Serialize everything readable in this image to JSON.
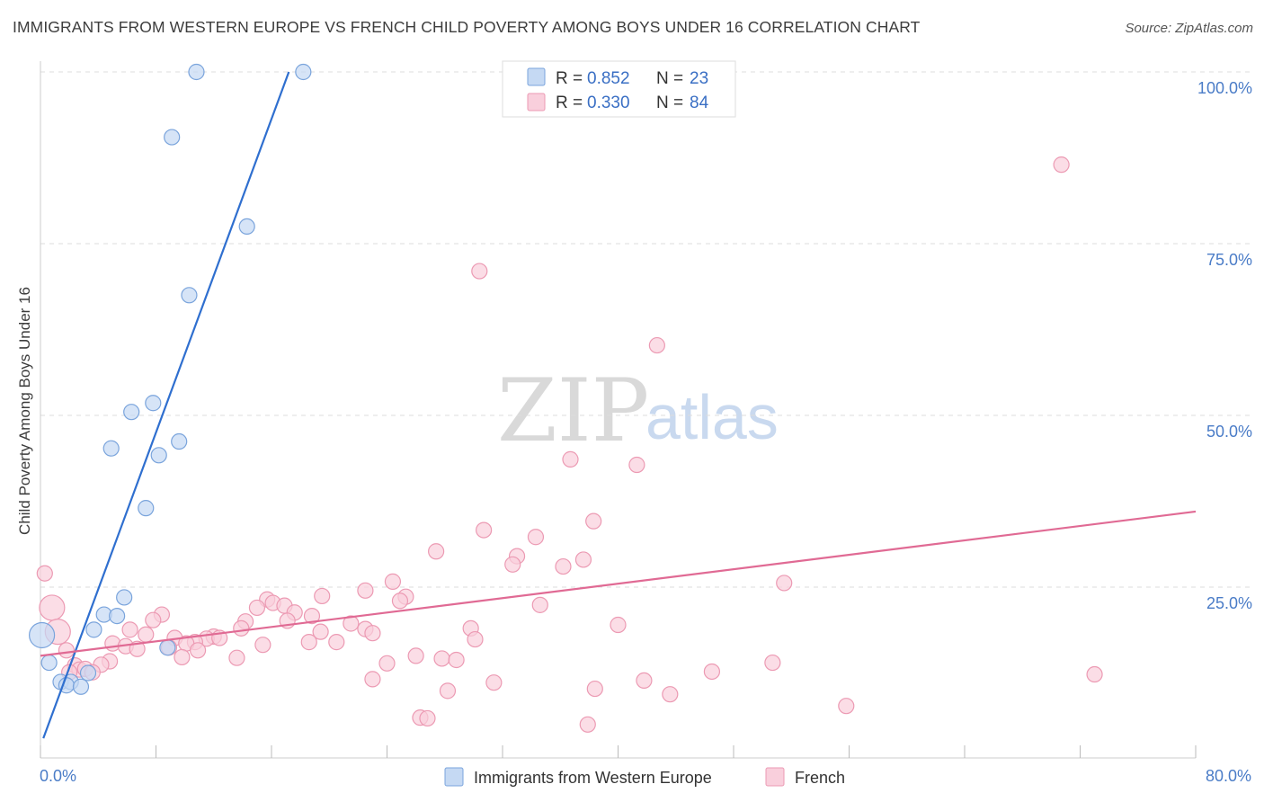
{
  "title": "IMMIGRANTS FROM WESTERN EUROPE VS FRENCH CHILD POVERTY AMONG BOYS UNDER 16 CORRELATION CHART",
  "source": "Source: ZipAtlas.com",
  "watermark": {
    "zip": "ZIP",
    "atlas": "atlas"
  },
  "legend": {
    "rows": [
      {
        "r_label": "R =",
        "r_value": "0.852",
        "n_label": "N =",
        "n_value": "23",
        "color": "#aac8f0"
      },
      {
        "r_label": "R =",
        "r_value": "0.330",
        "n_label": "N =",
        "n_value": "84",
        "color": "#f6bccd"
      }
    ]
  },
  "bottom_legend": [
    "Immigrants from Western Europe",
    "French"
  ],
  "colors": {
    "blue_fill": "#c5d9f3",
    "blue_stroke": "#7aa4dc",
    "blue_line": "#2f6fcf",
    "pink_fill": "#f9cfdc",
    "pink_stroke": "#ec9ab3",
    "pink_line": "#e06a94",
    "grid": "#dddddd",
    "tick": "#4a7cc7"
  },
  "chart_data": {
    "type": "scatter",
    "title": "IMMIGRANTS FROM WESTERN EUROPE VS FRENCH CHILD POVERTY AMONG BOYS UNDER 16 CORRELATION CHART",
    "xlabel": "",
    "ylabel": "Child Poverty Among Boys Under 16",
    "xlim": [
      0,
      80
    ],
    "ylim": [
      0,
      102
    ],
    "x_tick_labels": [
      "0.0%",
      "80.0%"
    ],
    "y_ticks": [
      {
        "value": 25,
        "label": "25.0%"
      },
      {
        "value": 50,
        "label": "50.0%"
      },
      {
        "value": 75,
        "label": "75.0%"
      },
      {
        "value": 100,
        "label": "100.0%"
      }
    ],
    "series": [
      {
        "name": "Immigrants from Western Europe",
        "R": 0.852,
        "N": 23,
        "trend": {
          "x": [
            0.2,
            17.2
          ],
          "y": [
            3.0,
            100.0
          ]
        },
        "points": [
          {
            "x": 10.8,
            "y": 100.0
          },
          {
            "x": 18.2,
            "y": 100.0
          },
          {
            "x": 9.1,
            "y": 90.5
          },
          {
            "x": 14.3,
            "y": 77.5
          },
          {
            "x": 10.3,
            "y": 67.5
          },
          {
            "x": 7.8,
            "y": 51.8
          },
          {
            "x": 6.3,
            "y": 50.5
          },
          {
            "x": 9.6,
            "y": 46.2
          },
          {
            "x": 4.9,
            "y": 45.2
          },
          {
            "x": 8.2,
            "y": 44.2
          },
          {
            "x": 7.3,
            "y": 36.5
          },
          {
            "x": 5.8,
            "y": 23.5
          },
          {
            "x": 4.4,
            "y": 21.0
          },
          {
            "x": 5.3,
            "y": 20.8
          },
          {
            "x": 3.7,
            "y": 18.8
          },
          {
            "x": 0.1,
            "y": 18.0,
            "size": "large"
          },
          {
            "x": 8.8,
            "y": 16.2
          },
          {
            "x": 0.6,
            "y": 14.0
          },
          {
            "x": 3.3,
            "y": 12.5
          },
          {
            "x": 1.4,
            "y": 11.2
          },
          {
            "x": 2.1,
            "y": 11.2
          },
          {
            "x": 1.8,
            "y": 10.7
          },
          {
            "x": 2.8,
            "y": 10.5
          }
        ]
      },
      {
        "name": "French",
        "R": 0.33,
        "N": 84,
        "trend": {
          "x": [
            0,
            80
          ],
          "y": [
            15.0,
            36.0
          ]
        },
        "points": [
          {
            "x": 70.7,
            "y": 86.5
          },
          {
            "x": 30.4,
            "y": 71.0
          },
          {
            "x": 42.7,
            "y": 60.2
          },
          {
            "x": 36.7,
            "y": 43.6
          },
          {
            "x": 41.3,
            "y": 42.8
          },
          {
            "x": 38.3,
            "y": 34.6
          },
          {
            "x": 30.7,
            "y": 33.3
          },
          {
            "x": 34.3,
            "y": 32.3
          },
          {
            "x": 27.4,
            "y": 30.2
          },
          {
            "x": 33.0,
            "y": 29.5
          },
          {
            "x": 37.6,
            "y": 29.0
          },
          {
            "x": 32.7,
            "y": 28.3
          },
          {
            "x": 36.2,
            "y": 28.0
          },
          {
            "x": 0.3,
            "y": 27.0
          },
          {
            "x": 24.4,
            "y": 25.8
          },
          {
            "x": 51.5,
            "y": 25.6
          },
          {
            "x": 22.5,
            "y": 24.5
          },
          {
            "x": 19.5,
            "y": 23.7
          },
          {
            "x": 25.3,
            "y": 23.6
          },
          {
            "x": 15.7,
            "y": 23.2
          },
          {
            "x": 24.9,
            "y": 23.0
          },
          {
            "x": 16.1,
            "y": 22.7
          },
          {
            "x": 34.6,
            "y": 22.4
          },
          {
            "x": 15.0,
            "y": 22.0
          },
          {
            "x": 16.9,
            "y": 22.3
          },
          {
            "x": 0.8,
            "y": 22.0,
            "size": "large"
          },
          {
            "x": 17.6,
            "y": 21.3
          },
          {
            "x": 8.4,
            "y": 21.0
          },
          {
            "x": 18.8,
            "y": 20.8
          },
          {
            "x": 7.8,
            "y": 20.2
          },
          {
            "x": 17.1,
            "y": 20.1
          },
          {
            "x": 14.2,
            "y": 20.0
          },
          {
            "x": 21.5,
            "y": 19.7
          },
          {
            "x": 40.0,
            "y": 19.5
          },
          {
            "x": 13.9,
            "y": 19.0
          },
          {
            "x": 29.8,
            "y": 19.0
          },
          {
            "x": 22.5,
            "y": 18.9
          },
          {
            "x": 6.2,
            "y": 18.8
          },
          {
            "x": 19.4,
            "y": 18.5
          },
          {
            "x": 23.0,
            "y": 18.3
          },
          {
            "x": 1.2,
            "y": 18.5,
            "size": "large"
          },
          {
            "x": 7.3,
            "y": 18.1
          },
          {
            "x": 12.0,
            "y": 17.8
          },
          {
            "x": 11.5,
            "y": 17.5
          },
          {
            "x": 9.3,
            "y": 17.6
          },
          {
            "x": 30.1,
            "y": 17.4
          },
          {
            "x": 10.7,
            "y": 17.0
          },
          {
            "x": 12.4,
            "y": 17.6
          },
          {
            "x": 18.6,
            "y": 17.0
          },
          {
            "x": 20.5,
            "y": 17.0
          },
          {
            "x": 5.0,
            "y": 16.8
          },
          {
            "x": 10.1,
            "y": 16.8
          },
          {
            "x": 15.4,
            "y": 16.6
          },
          {
            "x": 5.9,
            "y": 16.4
          },
          {
            "x": 6.7,
            "y": 16.0
          },
          {
            "x": 8.9,
            "y": 16.2
          },
          {
            "x": 10.9,
            "y": 15.8
          },
          {
            "x": 1.8,
            "y": 15.8
          },
          {
            "x": 26.0,
            "y": 15.0
          },
          {
            "x": 9.8,
            "y": 14.8
          },
          {
            "x": 13.6,
            "y": 14.7
          },
          {
            "x": 27.8,
            "y": 14.6
          },
          {
            "x": 28.8,
            "y": 14.4
          },
          {
            "x": 4.8,
            "y": 14.2
          },
          {
            "x": 50.7,
            "y": 14.0
          },
          {
            "x": 24.0,
            "y": 13.9
          },
          {
            "x": 4.2,
            "y": 13.7
          },
          {
            "x": 2.4,
            "y": 13.6
          },
          {
            "x": 2.7,
            "y": 13.0
          },
          {
            "x": 3.1,
            "y": 13.1
          },
          {
            "x": 46.5,
            "y": 12.7
          },
          {
            "x": 3.6,
            "y": 12.6
          },
          {
            "x": 2.0,
            "y": 12.6
          },
          {
            "x": 73.0,
            "y": 12.3
          },
          {
            "x": 23.0,
            "y": 11.6
          },
          {
            "x": 41.8,
            "y": 11.4
          },
          {
            "x": 31.4,
            "y": 11.1
          },
          {
            "x": 38.4,
            "y": 10.2
          },
          {
            "x": 28.2,
            "y": 9.9
          },
          {
            "x": 43.6,
            "y": 9.4
          },
          {
            "x": 55.8,
            "y": 7.7
          },
          {
            "x": 26.3,
            "y": 6.0
          },
          {
            "x": 26.8,
            "y": 5.9
          },
          {
            "x": 37.9,
            "y": 5.0
          }
        ]
      }
    ]
  }
}
